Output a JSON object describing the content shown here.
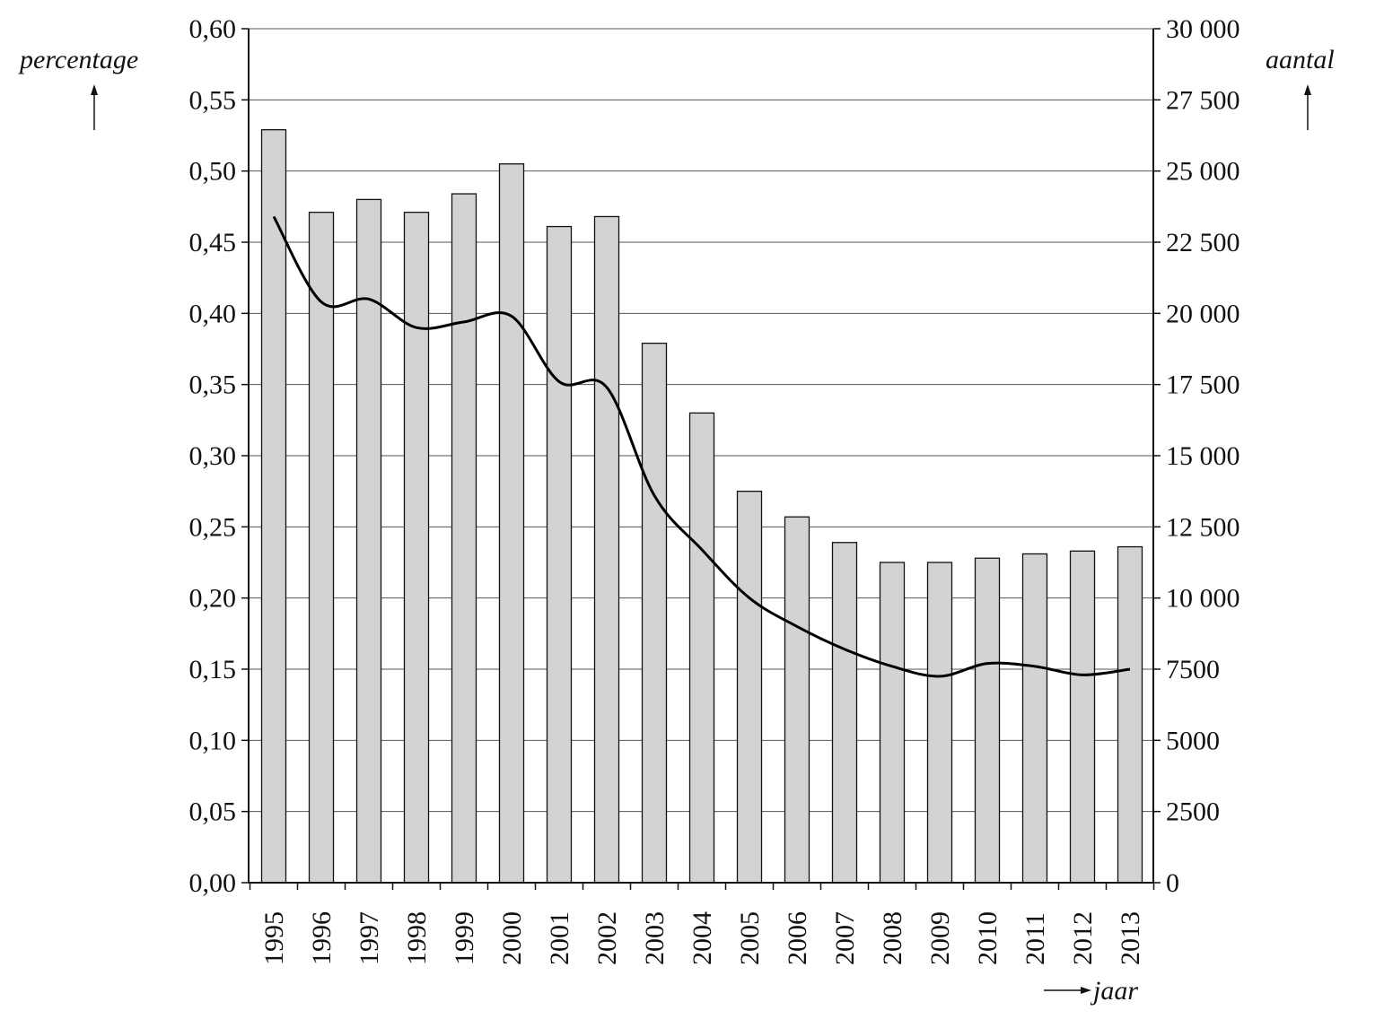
{
  "chart_data": {
    "type": "bar+line",
    "xlabel": "jaar",
    "ylabel_left": "percentage",
    "ylabel_right": "aantal",
    "ylim_left": [
      0,
      0.6
    ],
    "ylim_right": [
      0,
      30000
    ],
    "grid": true,
    "colors": {
      "bar_fill": "#d3d3d3",
      "bar_stroke": "#111111",
      "line": "#000000",
      "grid": "#555555"
    },
    "categories": [
      "1995",
      "1996",
      "1997",
      "1998",
      "1999",
      "2000",
      "2001",
      "2002",
      "2003",
      "2004",
      "2005",
      "2006",
      "2007",
      "2008",
      "2009",
      "2010",
      "2011",
      "2012",
      "2013"
    ],
    "series": [
      {
        "type": "bar",
        "axis": "left",
        "values": [
          0.529,
          0.471,
          0.48,
          0.471,
          0.484,
          0.505,
          0.461,
          0.468,
          0.379,
          0.33,
          0.275,
          0.257,
          0.239,
          0.225,
          0.225,
          0.228,
          0.231,
          0.233,
          0.236
        ]
      },
      {
        "type": "line",
        "axis": "right",
        "values": [
          23400,
          20400,
          20500,
          19500,
          19700,
          19900,
          17600,
          17400,
          13600,
          11700,
          10000,
          9000,
          8200,
          7600,
          7250,
          7700,
          7600,
          7300,
          7500
        ]
      }
    ],
    "left_ticks": [
      "0,00",
      "0,05",
      "0,10",
      "0,15",
      "0,20",
      "0,25",
      "0,30",
      "0,35",
      "0,40",
      "0,45",
      "0,50",
      "0,55",
      "0,60"
    ],
    "right_ticks": [
      "0",
      "2500",
      "5000",
      "7500",
      "10 000",
      "12 500",
      "15 000",
      "17 500",
      "20 000",
      "22 500",
      "25 000",
      "27 500",
      "30 000"
    ]
  }
}
